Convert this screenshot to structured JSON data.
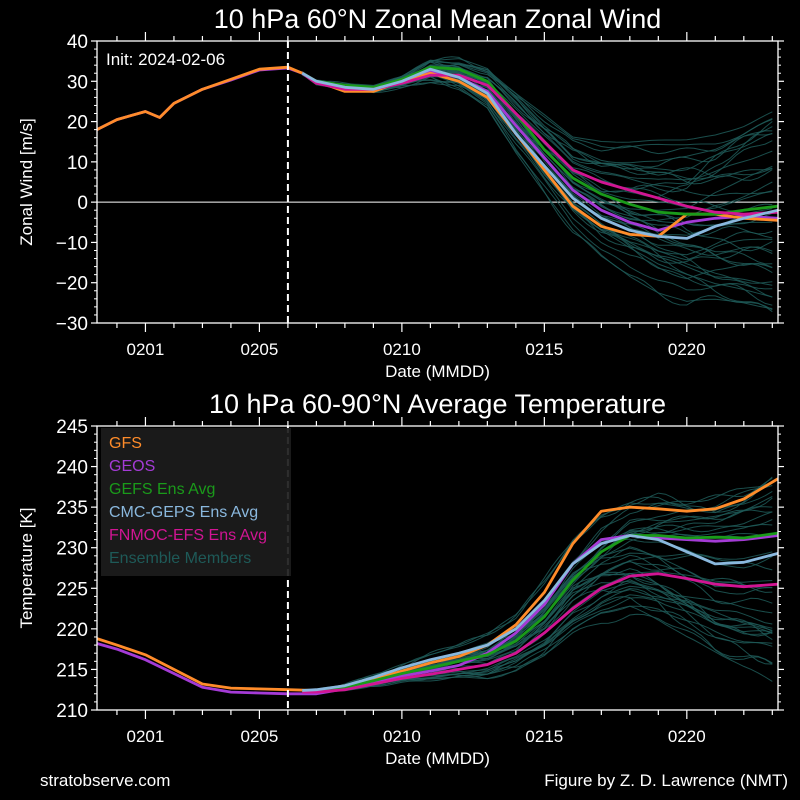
{
  "footer": {
    "left": "stratobserve.com",
    "right": "Figure by Z. D. Lawrence (NMT)"
  },
  "colors": {
    "GFS": "#ff8c2a",
    "GEOS": "#a43bd6",
    "GEFS Ens Avg": "#1a9a1a",
    "CMC-GEPS Ens Avg": "#8ab8de",
    "FNMOC-EFS Ens Avg": "#d11593",
    "Ensemble Members": "#1e5a58"
  },
  "chart_data": [
    {
      "type": "line",
      "title": "10 hPa  60°N   Zonal Mean Zonal Wind",
      "annotation": "Init: 2024-02-06",
      "xlabel": "Date (MMDD)",
      "ylabel": "Zonal  Wind   [m/s]",
      "xlim": [
        -1.7,
        22.2
      ],
      "ylim": [
        -30,
        40
      ],
      "yticks": [
        40,
        30,
        20,
        10,
        0,
        -10,
        -20,
        -30
      ],
      "ytick_labels": [
        "40",
        "30",
        "20",
        "10",
        "0",
        "−10",
        "−20",
        "−30"
      ],
      "xticks": [
        0,
        4,
        9,
        14,
        19
      ],
      "xtick_labels": [
        "0201",
        "0205",
        "0210",
        "0215",
        "0220"
      ],
      "x_units": "days after Jan 31",
      "init_day": 5,
      "zero_line": true,
      "legend": null,
      "ensemble": {
        "name": "Ensemble Members",
        "count": 40,
        "spread_end": [
          -29,
          24
        ]
      },
      "series": [
        {
          "name": "GFS",
          "x": [
            -1.7,
            -1,
            0,
            0.5,
            1,
            2,
            3,
            4,
            5,
            5.5,
            6,
            7,
            8,
            9,
            10,
            11,
            12,
            13,
            14,
            15,
            16,
            17,
            18,
            19,
            20,
            21,
            22.2
          ],
          "y": [
            18,
            20.5,
            22.5,
            21,
            24.5,
            28,
            30.5,
            33,
            33.5,
            32,
            30,
            27.5,
            27.5,
            30,
            32,
            30,
            26,
            17,
            8,
            -1,
            -6,
            -8,
            -8.5,
            -3,
            -3,
            -4,
            -4.5
          ]
        },
        {
          "name": "GEOS",
          "x": [
            -1.7,
            -1,
            0,
            0.5,
            1,
            2,
            3,
            4,
            5,
            5.5,
            6,
            7,
            8,
            9,
            10,
            11,
            12,
            13,
            14,
            15,
            16,
            17,
            18,
            19,
            20,
            21,
            22.2
          ],
          "y": [
            18,
            20.5,
            22.5,
            21,
            24.5,
            28,
            30.3,
            32.8,
            33.3,
            32,
            30,
            28.5,
            28,
            30.5,
            32.5,
            31,
            27.5,
            19,
            11,
            3,
            -2,
            -5,
            -7,
            -5,
            -4,
            -3.5,
            -4
          ]
        },
        {
          "name": "GEFS Ens Avg",
          "x": [
            5.5,
            6,
            7,
            8,
            9,
            10,
            11,
            12,
            13,
            14,
            15,
            16,
            17,
            18,
            19,
            20,
            21,
            22.2
          ],
          "y": [
            32,
            30,
            29,
            28.5,
            30.5,
            33.5,
            33,
            30,
            22,
            13,
            6,
            2,
            -0.5,
            -2.5,
            -3,
            -3,
            -2,
            -1
          ]
        },
        {
          "name": "CMC-GEPS Ens Avg",
          "x": [
            5.5,
            6,
            7,
            8,
            9,
            10,
            11,
            12,
            13,
            14,
            15,
            16,
            17,
            18,
            19,
            20,
            21,
            22.2
          ],
          "y": [
            32,
            30,
            28.5,
            28,
            30,
            33,
            31,
            27,
            17,
            9,
            1,
            -4,
            -7,
            -8.5,
            -9,
            -6,
            -4,
            -2
          ]
        },
        {
          "name": "FNMOC-EFS Ens Avg",
          "x": [
            5.5,
            6,
            7,
            8,
            9,
            10,
            11,
            12,
            13,
            14,
            15,
            16,
            17,
            18,
            19,
            20,
            21,
            22.2
          ],
          "y": [
            32,
            29.5,
            28,
            28,
            29.5,
            31.5,
            31.5,
            29,
            22,
            15,
            8,
            5,
            3,
            1,
            -1,
            -2.5,
            -3,
            -2.5
          ]
        }
      ]
    },
    {
      "type": "line",
      "title": "10 hPa  60-90°N Average Temperature",
      "xlabel": "Date (MMDD)",
      "ylabel": "Temperature  [K]",
      "xlim": [
        -1.7,
        22.2
      ],
      "ylim": [
        210,
        245
      ],
      "yticks": [
        245,
        240,
        235,
        230,
        225,
        220,
        215,
        210
      ],
      "ytick_labels": [
        "245",
        "240",
        "235",
        "230",
        "225",
        "220",
        "215",
        "210"
      ],
      "xticks": [
        0,
        4,
        9,
        14,
        19
      ],
      "xtick_labels": [
        "0201",
        "0205",
        "0210",
        "0215",
        "0220"
      ],
      "x_units": "days after Jan 31",
      "init_day": 5,
      "legend": "top-left",
      "legend_entries": [
        "GFS",
        "GEOS",
        "GEFS Ens Avg",
        "CMC-GEPS Ens Avg",
        "FNMOC-EFS Ens Avg",
        "Ensemble Members"
      ],
      "ensemble": {
        "name": "Ensemble Members",
        "count": 40,
        "spread_end": [
          213,
          239
        ]
      },
      "series": [
        {
          "name": "GFS",
          "x": [
            -1.7,
            -1,
            0,
            1,
            2,
            3,
            4,
            5,
            6,
            7,
            8,
            9,
            10,
            11,
            12,
            13,
            14,
            15,
            16,
            17,
            18,
            19,
            20,
            21,
            22.2
          ],
          "y": [
            218.8,
            218,
            216.8,
            215,
            213.2,
            212.7,
            212.6,
            212.5,
            212.4,
            213,
            213.8,
            214.8,
            215.8,
            216.6,
            218,
            220.5,
            224.5,
            230.5,
            234.5,
            235,
            234.8,
            234.5,
            234.8,
            236,
            238.5
          ]
        },
        {
          "name": "GEOS",
          "x": [
            -1.7,
            -1,
            0,
            1,
            2,
            3,
            4,
            5,
            6,
            7,
            8,
            9,
            10,
            11,
            12,
            13,
            14,
            15,
            16,
            17,
            18,
            19,
            20,
            21,
            22.2
          ],
          "y": [
            218.2,
            217.5,
            216.2,
            214.5,
            212.8,
            212.2,
            212.1,
            212,
            212,
            212.6,
            213.4,
            214.2,
            214.8,
            215.5,
            217,
            219.5,
            223,
            228,
            231,
            231.5,
            231.2,
            231,
            230.8,
            231,
            231.5
          ]
        },
        {
          "name": "GEFS Ens Avg",
          "x": [
            5.5,
            6,
            7,
            8,
            9,
            10,
            11,
            12,
            13,
            14,
            15,
            16,
            17,
            18,
            19,
            20,
            21,
            22.2
          ],
          "y": [
            212.3,
            212.3,
            212.8,
            213.6,
            214.5,
            215.2,
            216,
            216.8,
            218.5,
            221.5,
            226,
            229.5,
            231.5,
            231.5,
            231.2,
            231.3,
            231.2,
            231.8
          ]
        },
        {
          "name": "CMC-GEPS Ens Avg",
          "x": [
            5.5,
            6,
            7,
            8,
            9,
            10,
            11,
            12,
            13,
            14,
            15,
            16,
            17,
            18,
            19,
            20,
            21,
            22.2
          ],
          "y": [
            212.4,
            212.5,
            213,
            214,
            215.2,
            216.2,
            217,
            218,
            220,
            223.5,
            228,
            230.5,
            231.5,
            231,
            229.5,
            228,
            228.2,
            229.3
          ]
        },
        {
          "name": "FNMOC-EFS Ens Avg",
          "x": [
            5.5,
            6,
            7,
            8,
            9,
            10,
            11,
            12,
            13,
            14,
            15,
            16,
            17,
            18,
            19,
            20,
            21,
            22.2
          ],
          "y": [
            212.2,
            212.2,
            212.5,
            213.2,
            213.9,
            214.4,
            215,
            215.6,
            217,
            219.5,
            222.5,
            225,
            226.5,
            226.8,
            226.2,
            225.5,
            225.2,
            225.5
          ]
        }
      ]
    }
  ]
}
